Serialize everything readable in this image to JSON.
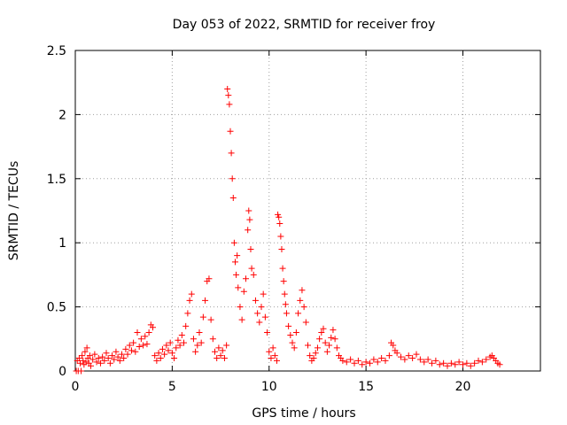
{
  "chart_data": {
    "type": "scatter",
    "title": "Day 053 of 2022, SRMTID for receiver froy",
    "xlabel": "GPS time / hours",
    "ylabel": "SRMTID / TECUs",
    "xlim": [
      0,
      24
    ],
    "ylim": [
      0,
      2.5
    ],
    "x_ticks": [
      0,
      5,
      10,
      15,
      20
    ],
    "x_tick_labels": [
      "0",
      "5",
      "10",
      "15",
      "20"
    ],
    "y_ticks": [
      0,
      0.5,
      1,
      1.5,
      2,
      2.5
    ],
    "y_tick_labels": [
      "0",
      "0.5",
      "1",
      "1.5",
      "2",
      "2.5"
    ],
    "grid": true,
    "marker": "+",
    "series": [
      {
        "name": "SRMTID",
        "color": "#ff0000",
        "points": [
          [
            0.05,
            0.0
          ],
          [
            0.1,
            0.08
          ],
          [
            0.15,
            0.0
          ],
          [
            0.2,
            0.1
          ],
          [
            0.25,
            0.06
          ],
          [
            0.3,
            0.0
          ],
          [
            0.35,
            0.12
          ],
          [
            0.4,
            0.08
          ],
          [
            0.45,
            0.05
          ],
          [
            0.5,
            0.15
          ],
          [
            0.55,
            0.07
          ],
          [
            0.6,
            0.18
          ],
          [
            0.65,
            0.1
          ],
          [
            0.7,
            0.06
          ],
          [
            0.75,
            0.12
          ],
          [
            0.8,
            0.04
          ],
          [
            0.9,
            0.09
          ],
          [
            1.0,
            0.13
          ],
          [
            1.1,
            0.07
          ],
          [
            1.2,
            0.1
          ],
          [
            1.3,
            0.06
          ],
          [
            1.4,
            0.11
          ],
          [
            1.5,
            0.08
          ],
          [
            1.6,
            0.14
          ],
          [
            1.7,
            0.1
          ],
          [
            1.8,
            0.06
          ],
          [
            1.9,
            0.12
          ],
          [
            2.0,
            0.09
          ],
          [
            2.1,
            0.15
          ],
          [
            2.2,
            0.11
          ],
          [
            2.3,
            0.08
          ],
          [
            2.4,
            0.13
          ],
          [
            2.5,
            0.1
          ],
          [
            2.6,
            0.17
          ],
          [
            2.7,
            0.13
          ],
          [
            2.8,
            0.2
          ],
          [
            2.9,
            0.16
          ],
          [
            3.0,
            0.22
          ],
          [
            3.1,
            0.15
          ],
          [
            3.2,
            0.3
          ],
          [
            3.3,
            0.19
          ],
          [
            3.4,
            0.25
          ],
          [
            3.5,
            0.2
          ],
          [
            3.6,
            0.27
          ],
          [
            3.7,
            0.21
          ],
          [
            3.8,
            0.3
          ],
          [
            3.9,
            0.36
          ],
          [
            4.0,
            0.34
          ],
          [
            4.1,
            0.12
          ],
          [
            4.2,
            0.08
          ],
          [
            4.3,
            0.14
          ],
          [
            4.4,
            0.1
          ],
          [
            4.5,
            0.17
          ],
          [
            4.6,
            0.13
          ],
          [
            4.7,
            0.2
          ],
          [
            4.8,
            0.16
          ],
          [
            4.9,
            0.22
          ],
          [
            5.0,
            0.14
          ],
          [
            5.1,
            0.1
          ],
          [
            5.2,
            0.18
          ],
          [
            5.3,
            0.24
          ],
          [
            5.4,
            0.2
          ],
          [
            5.5,
            0.28
          ],
          [
            5.6,
            0.22
          ],
          [
            5.7,
            0.35
          ],
          [
            5.8,
            0.45
          ],
          [
            5.9,
            0.55
          ],
          [
            6.0,
            0.6
          ],
          [
            6.1,
            0.25
          ],
          [
            6.2,
            0.15
          ],
          [
            6.3,
            0.2
          ],
          [
            6.4,
            0.3
          ],
          [
            6.5,
            0.22
          ],
          [
            6.6,
            0.42
          ],
          [
            6.7,
            0.55
          ],
          [
            6.8,
            0.7
          ],
          [
            6.9,
            0.72
          ],
          [
            7.0,
            0.4
          ],
          [
            7.1,
            0.25
          ],
          [
            7.2,
            0.15
          ],
          [
            7.3,
            0.1
          ],
          [
            7.4,
            0.18
          ],
          [
            7.5,
            0.12
          ],
          [
            7.6,
            0.16
          ],
          [
            7.7,
            0.1
          ],
          [
            7.8,
            0.2
          ],
          [
            7.85,
            2.2
          ],
          [
            7.9,
            2.15
          ],
          [
            7.95,
            2.08
          ],
          [
            8.0,
            1.87
          ],
          [
            8.05,
            1.7
          ],
          [
            8.1,
            1.5
          ],
          [
            8.15,
            1.35
          ],
          [
            8.2,
            1.0
          ],
          [
            8.25,
            0.85
          ],
          [
            8.3,
            0.75
          ],
          [
            8.35,
            0.9
          ],
          [
            8.4,
            0.65
          ],
          [
            8.5,
            0.5
          ],
          [
            8.6,
            0.4
          ],
          [
            8.7,
            0.62
          ],
          [
            8.8,
            0.72
          ],
          [
            8.9,
            1.1
          ],
          [
            8.95,
            1.25
          ],
          [
            9.0,
            1.18
          ],
          [
            9.05,
            0.95
          ],
          [
            9.1,
            0.8
          ],
          [
            9.2,
            0.75
          ],
          [
            9.3,
            0.55
          ],
          [
            9.4,
            0.45
          ],
          [
            9.5,
            0.38
          ],
          [
            9.6,
            0.5
          ],
          [
            9.7,
            0.6
          ],
          [
            9.8,
            0.42
          ],
          [
            9.9,
            0.3
          ],
          [
            10.0,
            0.15
          ],
          [
            10.1,
            0.1
          ],
          [
            10.2,
            0.18
          ],
          [
            10.3,
            0.12
          ],
          [
            10.4,
            0.08
          ],
          [
            10.45,
            1.22
          ],
          [
            10.5,
            1.2
          ],
          [
            10.55,
            1.15
          ],
          [
            10.6,
            1.05
          ],
          [
            10.65,
            0.95
          ],
          [
            10.7,
            0.8
          ],
          [
            10.75,
            0.7
          ],
          [
            10.8,
            0.6
          ],
          [
            10.85,
            0.52
          ],
          [
            10.9,
            0.45
          ],
          [
            11.0,
            0.35
          ],
          [
            11.1,
            0.28
          ],
          [
            11.2,
            0.22
          ],
          [
            11.3,
            0.18
          ],
          [
            11.4,
            0.3
          ],
          [
            11.5,
            0.45
          ],
          [
            11.6,
            0.55
          ],
          [
            11.7,
            0.63
          ],
          [
            11.8,
            0.5
          ],
          [
            11.9,
            0.38
          ],
          [
            12.0,
            0.2
          ],
          [
            12.1,
            0.12
          ],
          [
            12.2,
            0.08
          ],
          [
            12.3,
            0.1
          ],
          [
            12.4,
            0.14
          ],
          [
            12.5,
            0.18
          ],
          [
            12.6,
            0.25
          ],
          [
            12.7,
            0.3
          ],
          [
            12.8,
            0.33
          ],
          [
            12.9,
            0.22
          ],
          [
            13.0,
            0.15
          ],
          [
            13.1,
            0.2
          ],
          [
            13.2,
            0.26
          ],
          [
            13.3,
            0.32
          ],
          [
            13.4,
            0.25
          ],
          [
            13.5,
            0.18
          ],
          [
            13.6,
            0.12
          ],
          [
            13.7,
            0.1
          ],
          [
            13.8,
            0.08
          ],
          [
            14.0,
            0.07
          ],
          [
            14.2,
            0.09
          ],
          [
            14.4,
            0.06
          ],
          [
            14.6,
            0.08
          ],
          [
            14.8,
            0.05
          ],
          [
            15.0,
            0.07
          ],
          [
            15.2,
            0.06
          ],
          [
            15.4,
            0.09
          ],
          [
            15.6,
            0.07
          ],
          [
            15.8,
            0.1
          ],
          [
            16.0,
            0.08
          ],
          [
            16.2,
            0.12
          ],
          [
            16.3,
            0.22
          ],
          [
            16.4,
            0.2
          ],
          [
            16.5,
            0.16
          ],
          [
            16.6,
            0.14
          ],
          [
            16.8,
            0.11
          ],
          [
            17.0,
            0.09
          ],
          [
            17.2,
            0.12
          ],
          [
            17.4,
            0.1
          ],
          [
            17.6,
            0.13
          ],
          [
            17.8,
            0.09
          ],
          [
            18.0,
            0.07
          ],
          [
            18.2,
            0.09
          ],
          [
            18.4,
            0.06
          ],
          [
            18.6,
            0.08
          ],
          [
            18.8,
            0.05
          ],
          [
            19.0,
            0.06
          ],
          [
            19.2,
            0.04
          ],
          [
            19.4,
            0.06
          ],
          [
            19.6,
            0.05
          ],
          [
            19.8,
            0.07
          ],
          [
            20.0,
            0.05
          ],
          [
            20.2,
            0.06
          ],
          [
            20.4,
            0.04
          ],
          [
            20.6,
            0.06
          ],
          [
            20.8,
            0.08
          ],
          [
            21.0,
            0.07
          ],
          [
            21.2,
            0.09
          ],
          [
            21.4,
            0.11
          ],
          [
            21.5,
            0.12
          ],
          [
            21.6,
            0.1
          ],
          [
            21.7,
            0.08
          ],
          [
            21.8,
            0.06
          ],
          [
            21.9,
            0.05
          ]
        ]
      }
    ]
  }
}
